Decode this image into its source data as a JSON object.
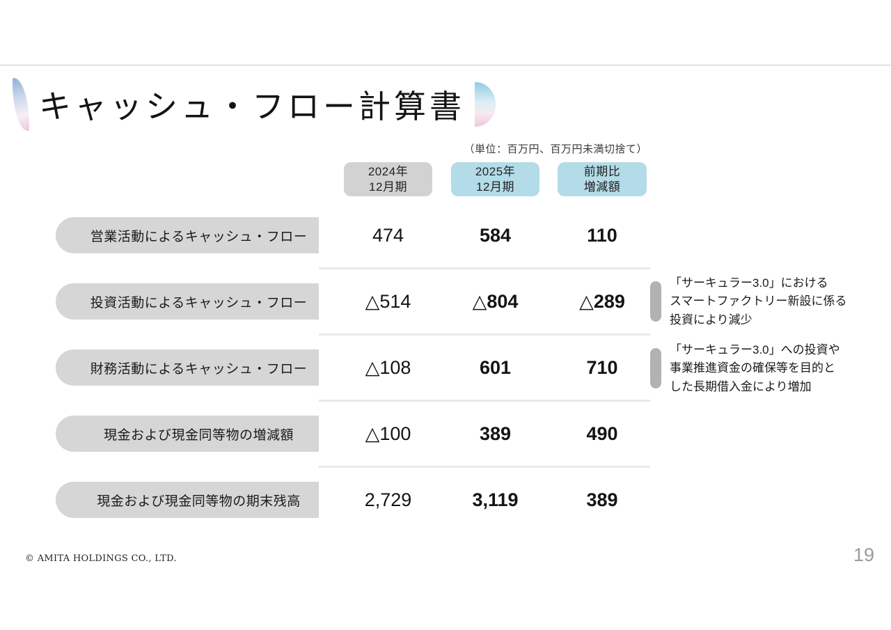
{
  "slide": {
    "title": "キャッシュ・フロー計算書",
    "unit_note": "（単位：百万円、百万円未満切捨て）",
    "footer": {
      "copyright": "© AMITA HOLDINGS CO., LTD.",
      "page_number": "19"
    }
  },
  "table": {
    "column_headers": [
      {
        "line1": "2024年",
        "line2": "12月期",
        "style": "gray"
      },
      {
        "line1": "2025年",
        "line2": "12月期",
        "style": "blue"
      },
      {
        "line1": "前期比",
        "line2": "増減額",
        "style": "blue"
      }
    ],
    "rows": [
      {
        "label": "営業活動によるキャッシュ・フロー",
        "v2024": "474",
        "v2025": "584",
        "diff": "110"
      },
      {
        "label": "投資活動によるキャッシュ・フロー",
        "v2024": "△514",
        "v2025": "△804",
        "diff": "△289"
      },
      {
        "label": "財務活動によるキャッシュ・フロー",
        "v2024": "△108",
        "v2025": "601",
        "diff": "710"
      },
      {
        "label": "現金および現金同等物の増減額",
        "v2024": "△100",
        "v2025": "389",
        "diff": "490"
      },
      {
        "label": "現金および現金同等物の期末残高",
        "v2024": "2,729",
        "v2025": "3,119",
        "diff": "389"
      }
    ]
  },
  "annotations": [
    {
      "lines": [
        "「サーキュラー3.0」における",
        "スマートファクトリー新設に係る",
        "投資により減少"
      ]
    },
    {
      "lines": [
        "「サーキュラー3.0」への投資や",
        "事業推進資金の確保等を目的と",
        "した長期借入金により増加"
      ]
    }
  ],
  "colors": {
    "header_gray_pill": "#d2d2d2",
    "header_blue_pill": "#b3dbe8",
    "row_label_pill": "#d6d6d6",
    "annotation_tab": "#b2b2b2",
    "deco_blue": "#93cbe4",
    "deco_pink": "#eec9db",
    "page_number_gray": "#9b9b9b"
  }
}
